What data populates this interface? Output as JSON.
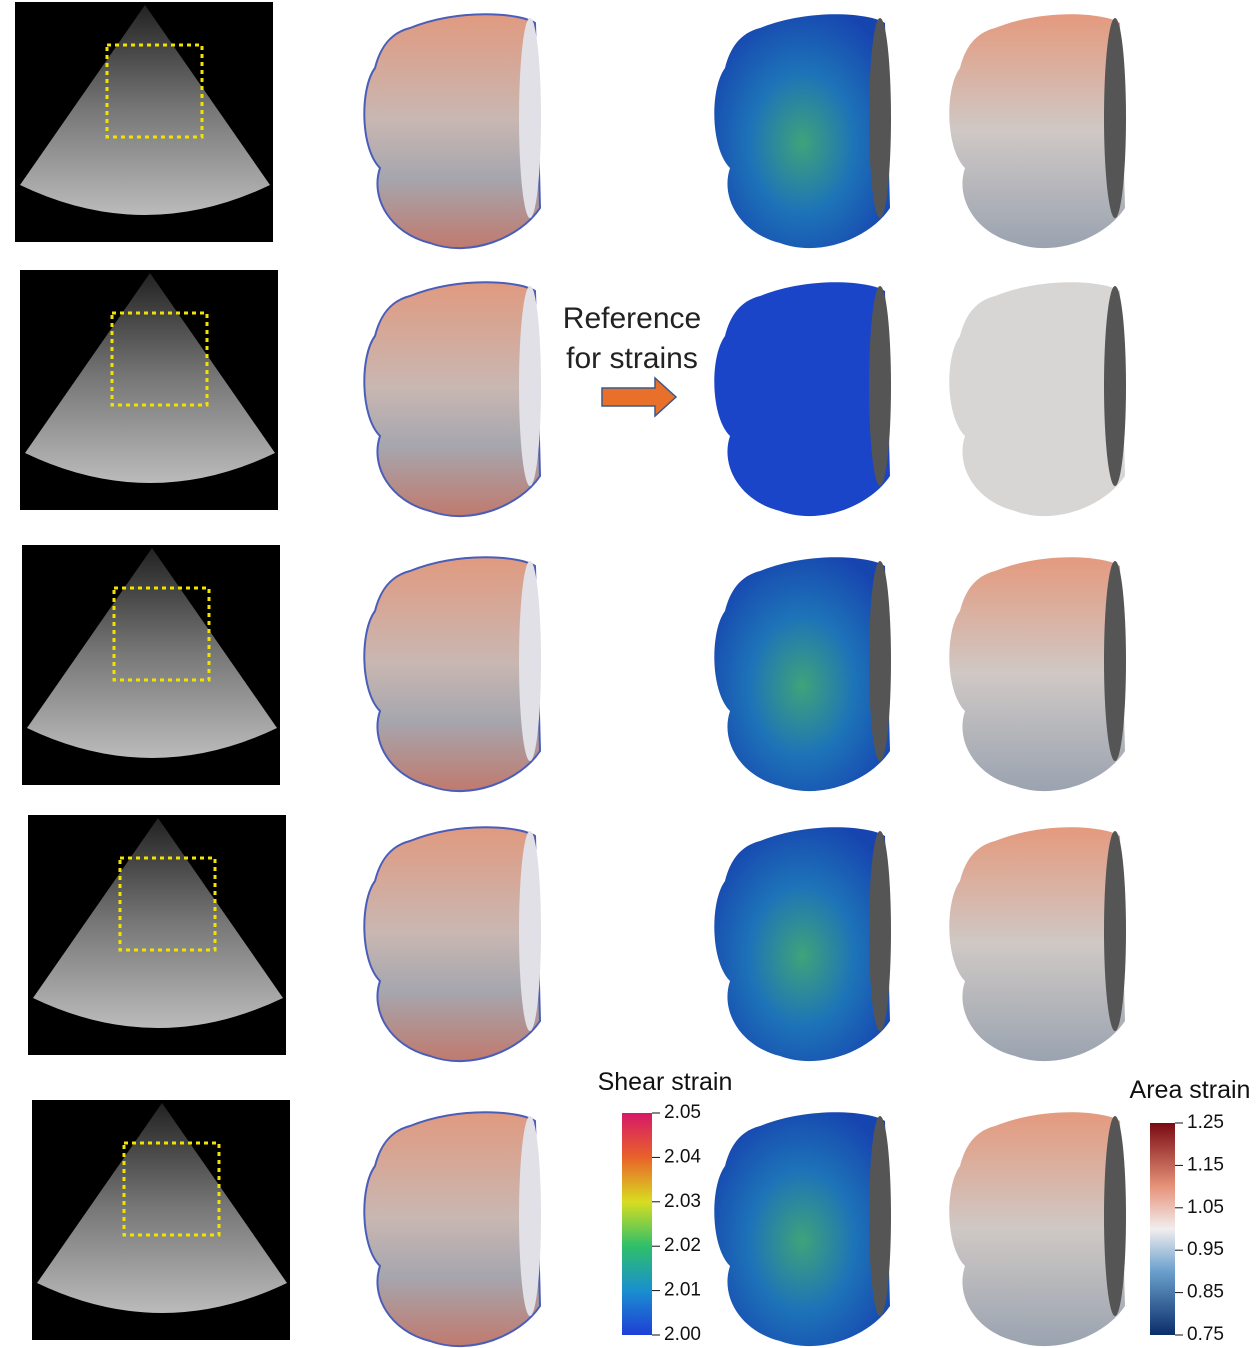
{
  "annotation": [
    "Reference",
    "for strains"
  ],
  "colorbars": [
    {
      "title": "Shear strain",
      "lim": [
        2.0,
        2.05
      ],
      "ticks": [
        2.05,
        2.04,
        2.03,
        2.02,
        2.01,
        {
          "value": 2.0,
          "label": "2.00"
        }
      ]
    },
    {
      "title": "Area strain",
      "lim": [
        0.75,
        1.25
      ],
      "ticks": [
        1.25,
        1.15,
        1.05,
        0.95,
        0.85,
        0.75
      ]
    }
  ]
}
